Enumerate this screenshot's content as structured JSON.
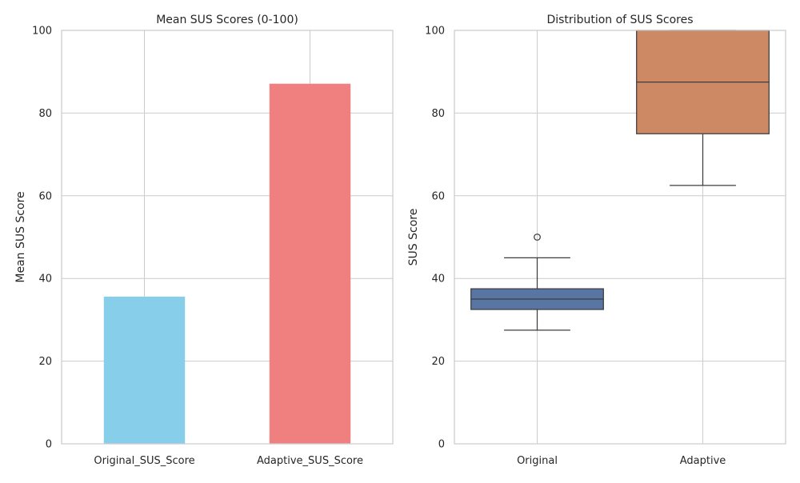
{
  "colors": {
    "background": "#ffffff",
    "grid": "#cccccc",
    "frame": "#cccccc",
    "bar_original": "#87ceeb",
    "bar_adaptive": "#f08080",
    "box_original": "#5875a4",
    "box_adaptive": "#cc8963",
    "box_line": "#3d3d3d"
  },
  "chart_data": [
    {
      "type": "bar",
      "title": "Mean SUS Scores (0-100)",
      "xlabel": "",
      "ylabel": "Mean SUS Score",
      "categories": [
        "Original_SUS_Score",
        "Adaptive_SUS_Score"
      ],
      "values": [
        35.6,
        87.1
      ],
      "ylim": [
        0,
        100
      ],
      "yticks": [
        0,
        20,
        40,
        60,
        80,
        100
      ],
      "grid": true,
      "bar_colors": [
        "#87ceeb",
        "#f08080"
      ]
    },
    {
      "type": "box",
      "title": "Distribution of SUS Scores",
      "xlabel": "",
      "ylabel": "SUS Score",
      "categories": [
        "Original",
        "Adaptive"
      ],
      "boxes": [
        {
          "whisker_low": 27.5,
          "q1": 32.5,
          "median": 35.0,
          "q3": 37.5,
          "whisker_high": 45.0,
          "outliers": [
            50.0
          ]
        },
        {
          "whisker_low": 62.5,
          "q1": 75.0,
          "median": 87.5,
          "q3": 100.0,
          "whisker_high": 100.0,
          "outliers": []
        }
      ],
      "ylim": [
        0,
        100
      ],
      "yticks": [
        0,
        20,
        40,
        60,
        80,
        100
      ],
      "grid": true,
      "box_colors": [
        "#5875a4",
        "#cc8963"
      ]
    }
  ]
}
